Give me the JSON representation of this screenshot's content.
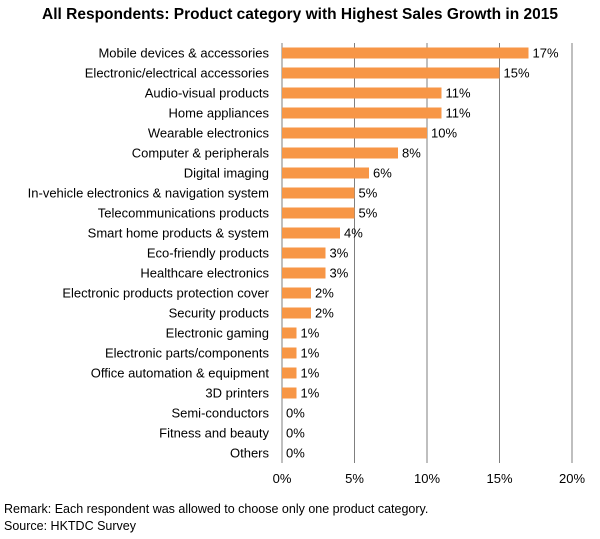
{
  "chart_data": {
    "type": "bar",
    "orientation": "horizontal",
    "title": "All Respondents: Product category with Highest Sales Growth in 2015",
    "categories": [
      "Mobile devices & accessories",
      "Electronic/electrical accessories",
      "Audio-visual products",
      "Home appliances",
      "Wearable electronics",
      "Computer & peripherals",
      "Digital imaging",
      "In-vehicle electronics & navigation system",
      "Telecommunications products",
      "Smart home products & system",
      "Eco-friendly products",
      "Healthcare electronics",
      "Electronic products protection cover",
      "Security products",
      "Electronic gaming",
      "Electronic parts/components",
      "Office automation & equipment",
      "3D printers",
      "Semi-conductors",
      "Fitness and beauty",
      "Others"
    ],
    "values": [
      17,
      15,
      11,
      11,
      10,
      8,
      6,
      5,
      5,
      4,
      3,
      3,
      2,
      2,
      1,
      1,
      1,
      1,
      0,
      0,
      0
    ],
    "value_labels": [
      "17%",
      "15%",
      "11%",
      "11%",
      "10%",
      "8%",
      "6%",
      "5%",
      "5%",
      "4%",
      "3%",
      "3%",
      "2%",
      "2%",
      "1%",
      "1%",
      "1%",
      "1%",
      "0%",
      "0%",
      "0%"
    ],
    "xlim": [
      0,
      20
    ],
    "x_ticks": [
      "0%",
      "5%",
      "10%",
      "15%",
      "20%"
    ],
    "grid": "vertical",
    "bar_color": "#F79646",
    "grid_color": "#7F7F7F"
  },
  "notes": {
    "remark": "Remark: Each respondent was allowed to choose only one product category.",
    "source": "Source: HKTDC Survey"
  }
}
